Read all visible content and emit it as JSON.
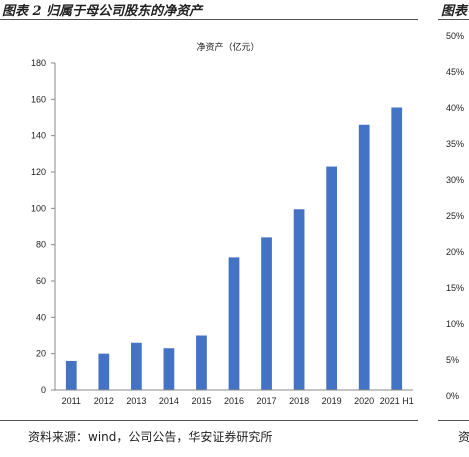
{
  "header": {
    "title": "图表 2 归属于母公司股东的净资产",
    "title_2": "图表"
  },
  "footer": {
    "source": "资料来源：wind，公司公告，华安证券研究所",
    "source_2": "资"
  },
  "chart_data": {
    "type": "bar",
    "title": "净资产（亿元）",
    "categories": [
      "2011",
      "2012",
      "2013",
      "2014",
      "2015",
      "2016",
      "2017",
      "2018",
      "2019",
      "2020",
      "2021 H1"
    ],
    "values": [
      16,
      20,
      26,
      23,
      30,
      73,
      84,
      99.5,
      123,
      146,
      155.5
    ],
    "ylim": [
      0,
      180
    ],
    "yticks": [
      "0",
      "20",
      "40",
      "60",
      "80",
      "100",
      "120",
      "140",
      "160",
      "180"
    ],
    "bar_color": "#4472C4",
    "xlabel": "",
    "ylabel": "",
    "grid": false
  },
  "right_axis": {
    "ticks": [
      "0%",
      "5%",
      "10%",
      "15%",
      "20%",
      "25%",
      "30%",
      "35%",
      "40%",
      "45%",
      "50%"
    ]
  }
}
